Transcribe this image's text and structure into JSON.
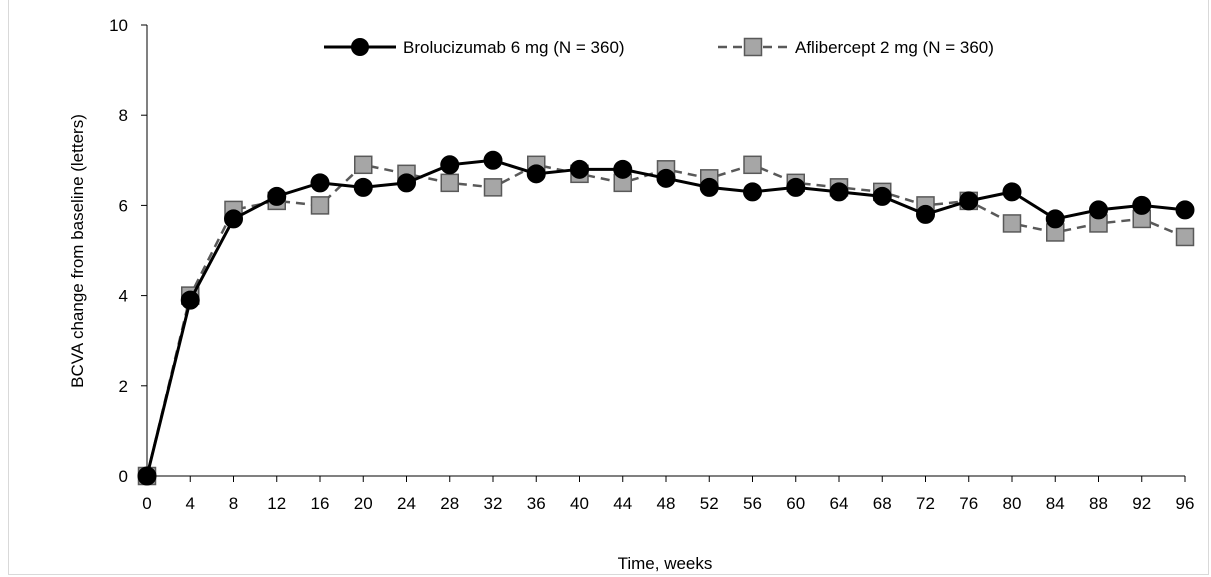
{
  "chart_data": {
    "type": "line",
    "title": "",
    "xlabel": "Time, weeks",
    "ylabel": "BCVA change from baseline (letters)",
    "xlim": [
      0,
      96
    ],
    "ylim": [
      0,
      10
    ],
    "x_ticks": [
      0,
      4,
      8,
      12,
      16,
      20,
      24,
      28,
      32,
      36,
      40,
      44,
      48,
      52,
      56,
      60,
      64,
      68,
      72,
      76,
      80,
      84,
      88,
      92,
      96
    ],
    "y_ticks": [
      0,
      2,
      4,
      6,
      8,
      10
    ],
    "grid": false,
    "legend_position": "top-center",
    "x": [
      0,
      4,
      8,
      12,
      16,
      20,
      24,
      28,
      32,
      36,
      40,
      44,
      48,
      52,
      56,
      60,
      64,
      68,
      72,
      76,
      80,
      84,
      88,
      92,
      96
    ],
    "series": [
      {
        "name": "Brolucizumab 6 mg (N = 360)",
        "color": "#000000",
        "marker": "circle",
        "line_style": "solid",
        "values": [
          0,
          3.9,
          5.7,
          6.2,
          6.5,
          6.4,
          6.5,
          6.9,
          7.0,
          6.7,
          6.8,
          6.8,
          6.6,
          6.4,
          6.3,
          6.4,
          6.3,
          6.2,
          5.8,
          6.1,
          6.3,
          5.7,
          5.9,
          6.0,
          5.9
        ]
      },
      {
        "name": "Aflibercept 2 mg (N = 360)",
        "color": "#595959",
        "marker_fill": "#a6a6a6",
        "marker": "square",
        "line_style": "dashed",
        "values": [
          0,
          4.0,
          5.9,
          6.1,
          6.0,
          6.9,
          6.7,
          6.5,
          6.4,
          6.9,
          6.7,
          6.5,
          6.8,
          6.6,
          6.9,
          6.5,
          6.4,
          6.3,
          6.0,
          6.1,
          5.6,
          5.4,
          5.6,
          5.7,
          5.3
        ]
      }
    ]
  }
}
